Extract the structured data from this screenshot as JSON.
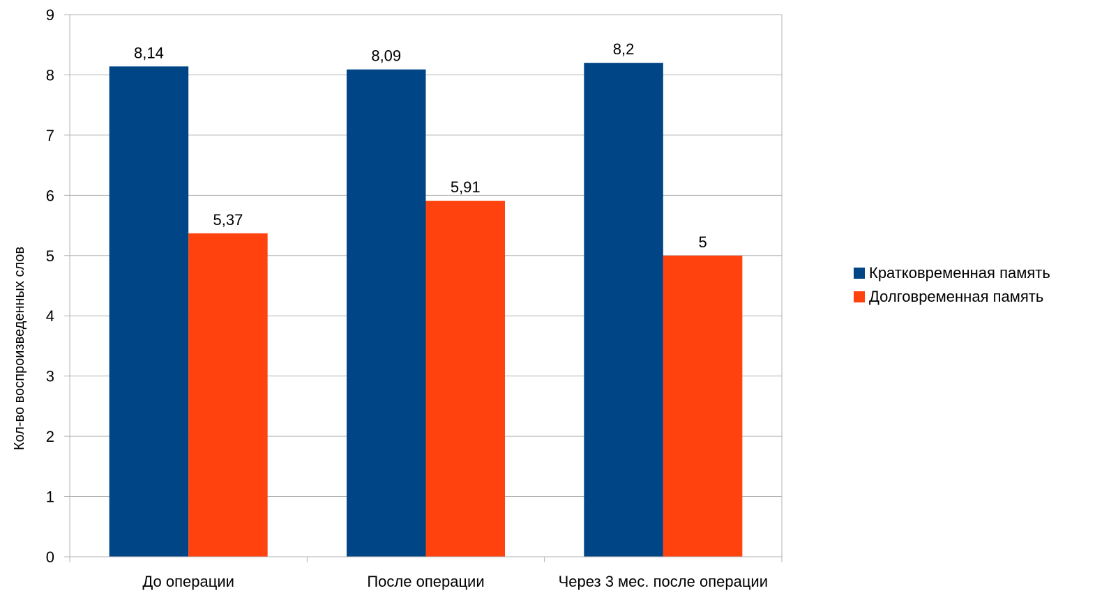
{
  "chart_data": {
    "type": "bar",
    "categories": [
      "До операции",
      "После операции",
      "Через 3 мес. после операции"
    ],
    "series": [
      {
        "name": "Кратковременная память",
        "values": [
          8.14,
          8.09,
          8.2
        ],
        "labels": [
          "8,14",
          "8,09",
          "8,2"
        ],
        "color": "#004586"
      },
      {
        "name": "Долговременная память",
        "values": [
          5.37,
          5.91,
          5
        ],
        "labels": [
          "5,37",
          "5,91",
          "5"
        ],
        "color": "#ff420e"
      }
    ],
    "xlabel": "",
    "ylabel": "Кол-во воспроизведенных слов",
    "ylim": [
      0,
      9
    ],
    "yticks": [
      0,
      1,
      2,
      3,
      4,
      5,
      6,
      7,
      8,
      9
    ],
    "grid": true,
    "legend_position": "right"
  }
}
